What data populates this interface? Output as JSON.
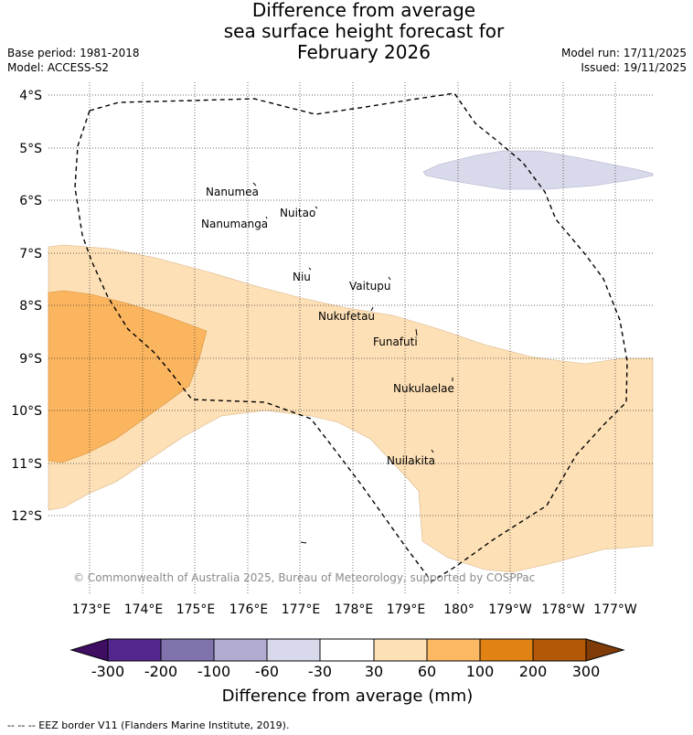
{
  "header": {
    "title_lines": [
      "Difference from average",
      "sea surface height forecast for",
      "February 2026"
    ],
    "base_period": "Base period: 1981-2018",
    "model": "Model: ACCESS-S2",
    "model_run": "Model run: 17/11/2025",
    "issued": "Issued: 19/11/2025"
  },
  "map": {
    "lat_labels": [
      "4°S",
      "5°S",
      "6°S",
      "7°S",
      "8°S",
      "9°S",
      "10°S",
      "11°S",
      "12°S"
    ],
    "lon_labels": [
      "173°E",
      "174°E",
      "175°E",
      "176°E",
      "177°E",
      "178°E",
      "179°E",
      "180°",
      "179°W",
      "178°W",
      "177°W"
    ],
    "places": [
      "Nanumea",
      "Nuitao",
      "Nanumanga",
      "Niu",
      "Vaitupu",
      "Nukufetau",
      "Funafuti",
      "Nukulaelae",
      "Nuilakita"
    ],
    "copyright": "© Commonwealth of Australia 2025, Bureau of Meteorology, supported by COSPPac",
    "colors": {
      "light_orange": "#fde0b6",
      "mid_orange": "#fbb55e",
      "light_purple": "#d8d9ea"
    }
  },
  "colorbar": {
    "ticks": [
      "-300",
      "-200",
      "-100",
      "-60",
      "-30",
      "30",
      "60",
      "100",
      "200",
      "300"
    ],
    "colors": [
      "#3f0e63",
      "#54278f",
      "#8073ac",
      "#b2abd2",
      "#d8daeb",
      "#ffffff",
      "#fee0b6",
      "#fdb863",
      "#e08214",
      "#b35806",
      "#7f3b08"
    ],
    "label": "Difference from average (mm)"
  },
  "footer": {
    "eez_note": "-- -- -- EEZ border V11 (Flanders Marine Institute, 2019)."
  }
}
